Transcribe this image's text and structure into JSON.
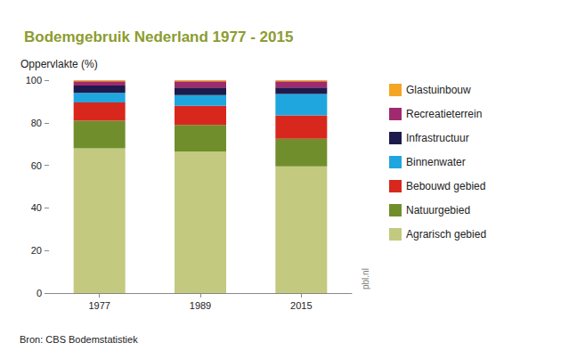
{
  "chart_data": {
    "type": "bar",
    "title": "Bodemgebruik Nederland 1977 - 2015",
    "y_label": "Oppervlakte (%)",
    "source": "Bron: CBS Bodemstatistiek",
    "annotations": [
      "pbl.nl"
    ],
    "categories": [
      "1977",
      "1989",
      "2015"
    ],
    "stacked": true,
    "grid": false,
    "legend": "right",
    "ylim": [
      0,
      100
    ],
    "yticks": [
      0,
      20,
      40,
      60,
      80,
      100
    ],
    "series": [
      {
        "name": "Agrarisch gebied",
        "color": "#c3c97f",
        "values": [
          68,
          66.5,
          59.5
        ]
      },
      {
        "name": "Natuurgebied",
        "color": "#708f2c",
        "values": [
          13,
          12.5,
          13
        ]
      },
      {
        "name": "Bebouwd gebied",
        "color": "#d8281e",
        "values": [
          8.5,
          9,
          11
        ]
      },
      {
        "name": "Binnenwater",
        "color": "#1fa6df",
        "values": [
          4.5,
          5,
          10
        ]
      },
      {
        "name": "Infrastructuur",
        "color": "#1e1a4c",
        "values": [
          3.5,
          3.5,
          3
        ]
      },
      {
        "name": "Recreatieterrein",
        "color": "#a02a6f",
        "values": [
          2,
          3,
          3
        ]
      },
      {
        "name": "Glastuinbouw",
        "color": "#f4a623",
        "values": [
          0.5,
          0.5,
          0.5
        ]
      }
    ]
  }
}
